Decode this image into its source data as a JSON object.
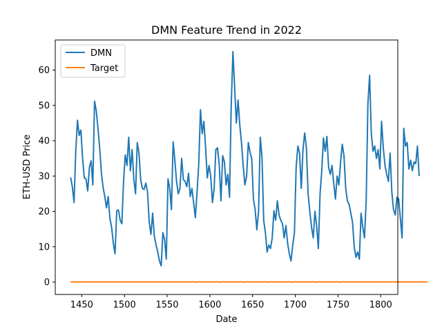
{
  "chart_data": {
    "type": "line",
    "title": "DMN Feature Trend in 2022",
    "xlabel": "Date",
    "ylabel": "ETH-USD Price",
    "xlim": [
      1419,
      1820
    ],
    "ylim": [
      -3.5,
      68.5
    ],
    "x_ticks": [
      1450,
      1500,
      1550,
      1600,
      1650,
      1700,
      1750,
      1800
    ],
    "y_ticks": [
      0,
      10,
      20,
      30,
      40,
      50,
      60
    ],
    "grid": false,
    "legend_position": "top-left",
    "x_start": 1437,
    "x_step": 2,
    "series": [
      {
        "name": "DMN",
        "color": "#1f77b4",
        "values": [
          29.6,
          27.0,
          22.5,
          37.0,
          45.8,
          41.5,
          43.0,
          35.0,
          29.5,
          29.2,
          25.8,
          32.5,
          34.3,
          27.5,
          51.2,
          48.5,
          43.5,
          38.0,
          31.0,
          26.8,
          24.2,
          21.0,
          24.2,
          18.0,
          15.5,
          11.0,
          8.0,
          20.2,
          20.4,
          17.5,
          16.5,
          28.8,
          36.0,
          33.0,
          41.0,
          31.5,
          37.5,
          29.0,
          25.0,
          39.5,
          36.5,
          29.0,
          26.5,
          26.2,
          28.0,
          25.5,
          17.0,
          13.5,
          19.5,
          13.0,
          10.5,
          8.5,
          6.0,
          4.6,
          14.0,
          12.0,
          6.5,
          29.2,
          26.5,
          20.5,
          39.7,
          34.5,
          28.5,
          25.0,
          26.5,
          35.0,
          29.0,
          28.5,
          27.0,
          30.8,
          24.2,
          26.5,
          22.5,
          18.2,
          25.5,
          33.5,
          48.8,
          42.0,
          45.5,
          38.0,
          29.5,
          33.0,
          30.0,
          22.5,
          26.5,
          37.5,
          38.0,
          33.0,
          23.0,
          35.8,
          34.0,
          27.5,
          30.5,
          24.0,
          50.0,
          65.2,
          55.0,
          45.0,
          51.5,
          44.5,
          39.5,
          33.0,
          27.5,
          30.0,
          39.5,
          36.8,
          35.0,
          23.5,
          20.5,
          14.8,
          20.0,
          41.0,
          35.5,
          17.5,
          14.0,
          8.5,
          10.5,
          9.5,
          12.5,
          20.2,
          17.5,
          23.0,
          19.0,
          17.5,
          16.5,
          12.5,
          16.0,
          11.0,
          8.0,
          6.0,
          10.5,
          14.0,
          32.5,
          38.5,
          36.5,
          26.5,
          37.5,
          42.2,
          38.0,
          25.0,
          20.0,
          15.5,
          12.5,
          20.0,
          16.0,
          9.5,
          25.0,
          31.5,
          40.8,
          37.0,
          41.2,
          32.5,
          30.5,
          33.0,
          28.0,
          23.5,
          30.0,
          27.5,
          34.0,
          39.0,
          35.8,
          26.5,
          23.0,
          22.0,
          19.5,
          17.0,
          10.0,
          7.0,
          8.5,
          6.5,
          19.5,
          15.5,
          12.5,
          23.0,
          50.5,
          58.5,
          42.0,
          37.0,
          38.5,
          35.0,
          37.5,
          32.0,
          45.5,
          38.0,
          33.0,
          30.5,
          28.5,
          36.5,
          25.5,
          20.5,
          19.0,
          24.0,
          23.5,
          18.0,
          12.5,
          43.5,
          38.5,
          39.5,
          32.0,
          34.5,
          31.5,
          34.0,
          33.5,
          38.5,
          30.0
        ]
      },
      {
        "name": "Target",
        "color": "#ff7f0e",
        "values": [
          0.1,
          0.0,
          0.1,
          0.0,
          0.0,
          0.1,
          0.0,
          0.1,
          0.0,
          0.1,
          0.0,
          0.0,
          0.1,
          0.0,
          0.1,
          0.0,
          0.1,
          0.0,
          0.0,
          0.1,
          0.0,
          0.1,
          0.0,
          0.1,
          0.0,
          0.0,
          0.1,
          0.0,
          0.1,
          0.0,
          0.1,
          0.0,
          0.0,
          0.1,
          0.0,
          0.1,
          0.0,
          0.1,
          0.0,
          0.0,
          0.1,
          0.0,
          0.1,
          0.0,
          0.1,
          0.0,
          0.0,
          0.1,
          0.0,
          0.1,
          0.0,
          0.1,
          0.0,
          0.0,
          0.1,
          0.0,
          0.1,
          0.0,
          0.1,
          0.0,
          0.0,
          0.1,
          0.0,
          0.1,
          0.0,
          0.1,
          0.0,
          0.0,
          0.1,
          0.0,
          0.1,
          0.0,
          0.1,
          0.0,
          0.0,
          0.1,
          0.0,
          0.1,
          0.0,
          0.1,
          0.0,
          0.0,
          0.1,
          0.0,
          0.1,
          0.0,
          0.1,
          0.0,
          0.0,
          0.1,
          0.0,
          0.1,
          0.0,
          0.1,
          0.0,
          0.0,
          0.1,
          0.0,
          0.1,
          0.0,
          0.1,
          0.0,
          0.0,
          0.1,
          0.0,
          0.1,
          0.0,
          0.1,
          0.0,
          0.0,
          0.1,
          0.0,
          0.1,
          0.0,
          0.1,
          0.0,
          0.0,
          0.1,
          0.0,
          0.1,
          0.0,
          0.1,
          0.0,
          0.0,
          0.1,
          0.0,
          0.1,
          0.0,
          0.1,
          0.0,
          0.0,
          0.1,
          0.0,
          0.1,
          0.0,
          0.1,
          0.0,
          0.0,
          0.1,
          0.0,
          0.1,
          0.0,
          0.1,
          0.0,
          0.0,
          0.1,
          0.0,
          0.1,
          0.0,
          0.1,
          0.0,
          0.0,
          0.1,
          0.0,
          0.1,
          0.0,
          0.1,
          0.0,
          0.0,
          0.1,
          0.0,
          0.1,
          0.0,
          0.1,
          0.0,
          0.0,
          0.1,
          0.0,
          0.1,
          0.0,
          0.1,
          0.0,
          0.0,
          0.1,
          0.0,
          0.1,
          0.0,
          0.1,
          0.0,
          0.0,
          0.1,
          0.0,
          0.1,
          0.0,
          0.1,
          0.0,
          0.0,
          0.1,
          0.0,
          0.1,
          0.0,
          0.1,
          0.0,
          0.0,
          0.1,
          0.0,
          0.1,
          0.0,
          0.1,
          0.0,
          0.0,
          0.1,
          0.0,
          0.1,
          0.0,
          0.1,
          0.0,
          0.0,
          0.1,
          0.0
        ]
      }
    ]
  }
}
